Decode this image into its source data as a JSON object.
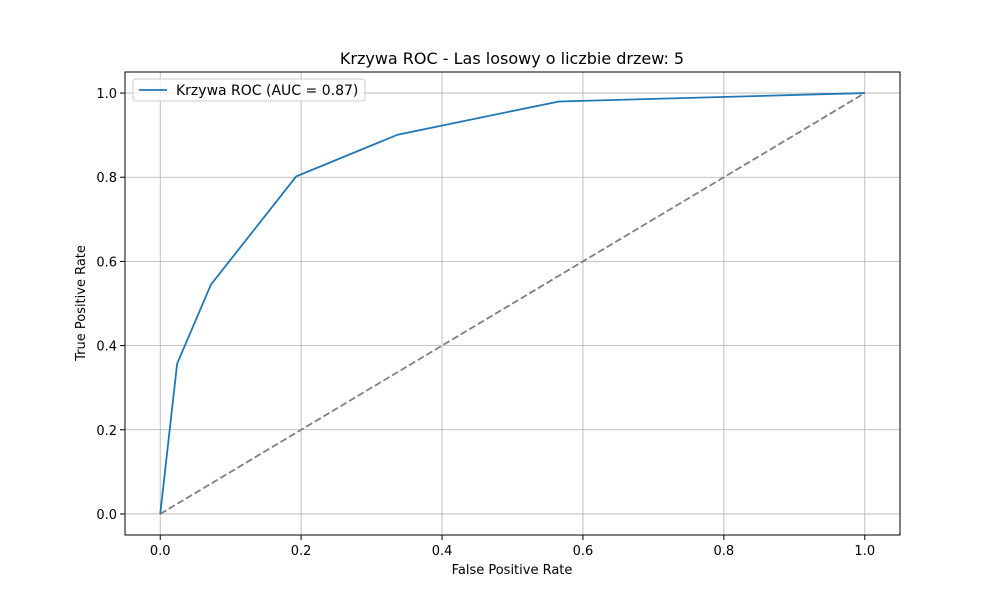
{
  "chart_data": {
    "type": "line",
    "title": "Krzywa ROC - Las losowy o liczbie drzew: 5",
    "xlabel": "False Positive Rate",
    "ylabel": "True Positive Rate",
    "xlim": [
      -0.05,
      1.05
    ],
    "ylim": [
      -0.05,
      1.05
    ],
    "xticks": [
      "0.0",
      "0.2",
      "0.4",
      "0.6",
      "0.8",
      "1.0"
    ],
    "yticks": [
      "0.0",
      "0.2",
      "0.4",
      "0.6",
      "0.8",
      "1.0"
    ],
    "grid": true,
    "legend_position": "upper-left",
    "series": [
      {
        "name": "Krzywa ROC (AUC = 0.87)",
        "color": "#1f77b4",
        "style": "solid",
        "x": [
          0.0,
          0.024,
          0.072,
          0.193,
          0.337,
          0.566,
          1.0
        ],
        "y": [
          0.0,
          0.357,
          0.545,
          0.802,
          0.901,
          0.98,
          1.0
        ]
      },
      {
        "color": "#808080",
        "style": "dashed",
        "x": [
          0.0,
          1.0
        ],
        "y": [
          0.0,
          1.0
        ]
      }
    ]
  }
}
